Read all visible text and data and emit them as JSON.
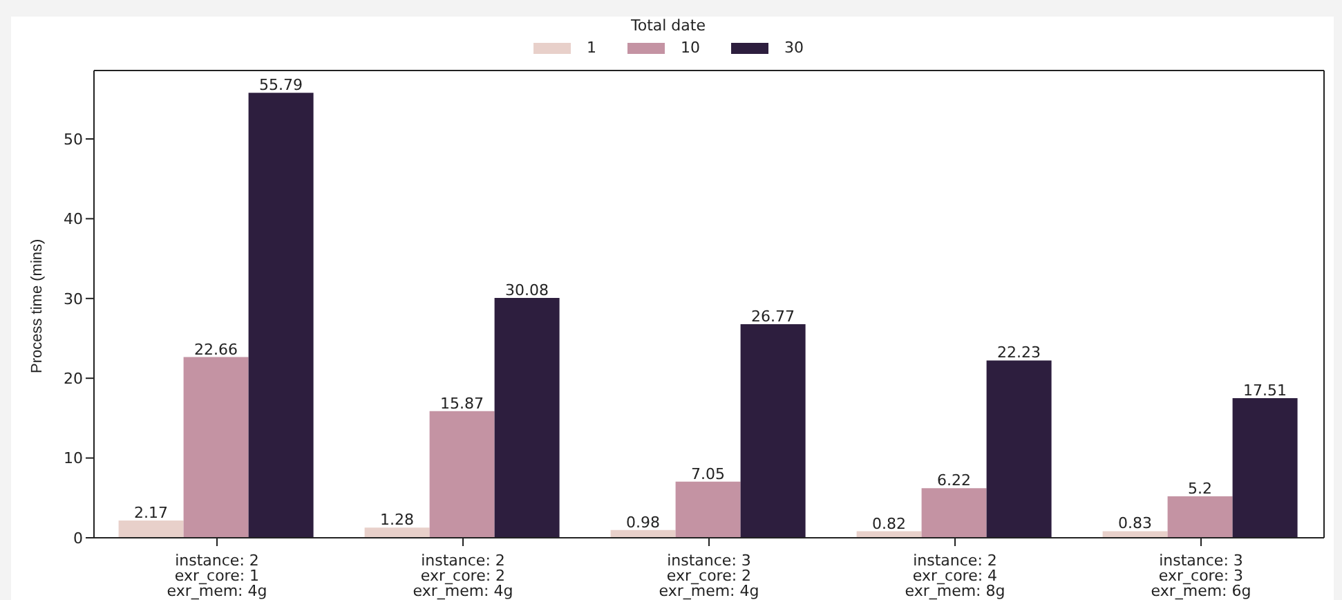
{
  "chart_data": {
    "type": "bar",
    "ylabel": "Process time (mins)",
    "legend_title": "Total date",
    "categories": [
      "instance: 2\nexr_core: 1\nexr_mem: 4g",
      "instance: 2\nexr_core: 2\nexr_mem: 4g",
      "instance: 3\nexr_core: 2\nexr_mem: 4g",
      "instance: 2\nexr_core: 4\nexr_mem: 8g",
      "instance: 3\nexr_core: 3\nexr_mem: 6g"
    ],
    "series": [
      {
        "name": "1",
        "color": "#e8d0ca",
        "values": [
          2.17,
          1.28,
          0.98,
          0.82,
          0.83
        ]
      },
      {
        "name": "10",
        "color": "#c493a3",
        "values": [
          22.66,
          15.87,
          7.05,
          6.22,
          5.2
        ]
      },
      {
        "name": "30",
        "color": "#2d1e3e",
        "values": [
          55.79,
          30.08,
          26.77,
          22.23,
          17.51
        ]
      }
    ],
    "ylim": [
      0,
      58.58
    ],
    "yticks": [
      0,
      10,
      20,
      30,
      40,
      50
    ],
    "data_labels": true,
    "legend": "top",
    "grid": false
  }
}
